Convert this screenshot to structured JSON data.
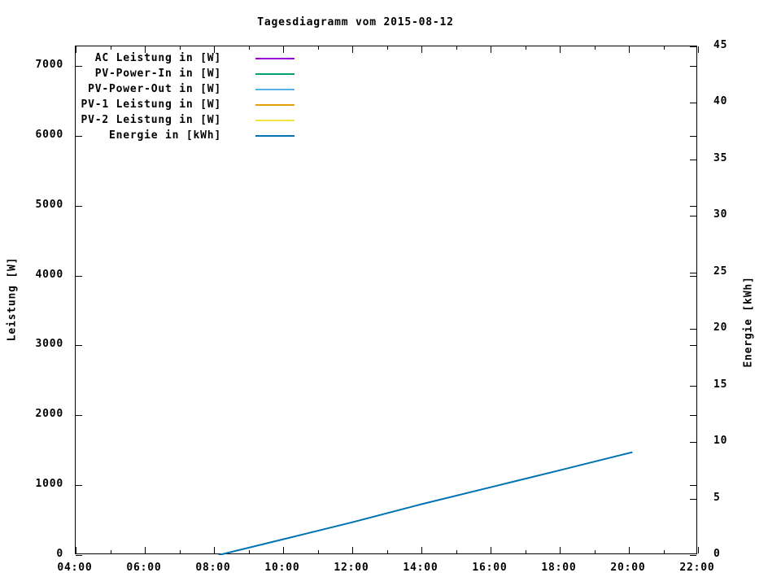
{
  "chart_data": {
    "type": "line",
    "title": "Tagesdiagramm vom 2015-08-12",
    "xlabel": "",
    "ylabel": "Leistung [W]",
    "y2label": "Energie [kWh]",
    "x_range_hours": [
      4,
      22
    ],
    "x_major_step_hours": 2,
    "x_minor_step_hours": 1,
    "x_ticks_major": [
      "04:00",
      "06:00",
      "08:00",
      "10:00",
      "12:00",
      "14:00",
      "16:00",
      "18:00",
      "20:00",
      "22:00"
    ],
    "ylim_left": [
      0,
      7280
    ],
    "yticks_left": [
      0,
      1000,
      2000,
      3000,
      4000,
      5000,
      6000,
      7000
    ],
    "ylim_right": [
      0,
      45
    ],
    "yticks_right": [
      0,
      5,
      10,
      15,
      20,
      25,
      30,
      35,
      40,
      45
    ],
    "grid": false,
    "legend_position": "top-left-inside",
    "series": [
      {
        "name": "AC Leistung in [W]",
        "axis": "left",
        "color": "#9400D3",
        "points": []
      },
      {
        "name": "PV-Power-In in [W]",
        "axis": "left",
        "color": "#009E73",
        "points": []
      },
      {
        "name": "PV-Power-Out in [W]",
        "axis": "left",
        "color": "#56B4E9",
        "points": []
      },
      {
        "name": "PV-1 Leistung in [W]",
        "axis": "left",
        "color": "#E69F00",
        "points": []
      },
      {
        "name": "PV-2 Leistung in [W]",
        "axis": "left",
        "color": "#F0E442",
        "points": []
      },
      {
        "name": "Energie in [kWh]",
        "axis": "right",
        "color": "#0072B2",
        "points": [
          [
            "08:08",
            0.0
          ],
          [
            "10:00",
            1.4
          ],
          [
            "12:00",
            2.9
          ],
          [
            "14:00",
            4.5
          ],
          [
            "16:00",
            6.0
          ],
          [
            "18:00",
            7.5
          ],
          [
            "20:06",
            9.1
          ]
        ]
      }
    ]
  }
}
